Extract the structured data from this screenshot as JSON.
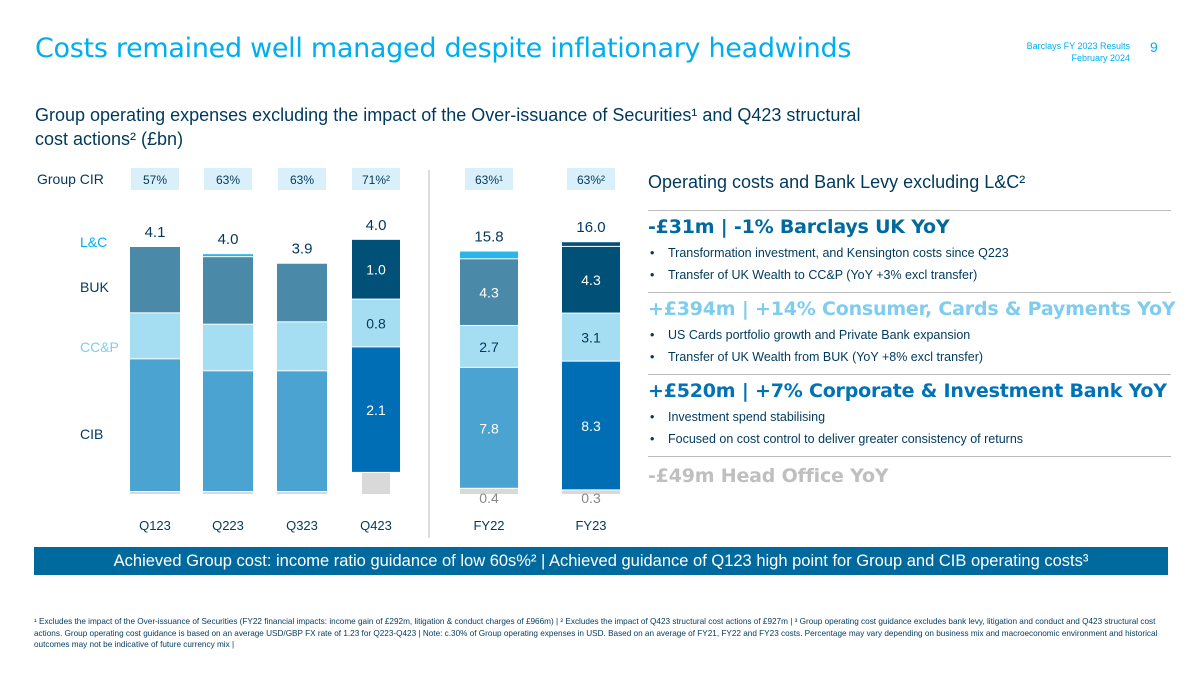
{
  "header": {
    "title": "Costs remained well managed despite inflationary headwinds",
    "report_name": "Barclays FY 2023 Results",
    "report_date": "February 2024",
    "page_number": "9"
  },
  "subtitle": "Group operating expenses excluding the impact of the Over-issuance of Securities¹ and Q423 structural cost actions² (£bn)",
  "colors": {
    "cib": "#4ba3d2",
    "ccp": "#a5ddf3",
    "buk": "#4a8aa8",
    "lc": "#29b5e8",
    "fy23_cib": "#006eb4",
    "fy23_buk": "#005078",
    "head_office": "#d9d9d9",
    "cir_box": "#d9f0fa",
    "accent": "#00aeef",
    "navy": "#00395d"
  },
  "chart_data": {
    "type": "bar",
    "stacked": true,
    "title": "Group operating expenses excluding the impact of the Over-issuance of Securities and Q423 structural cost actions (£bn)",
    "categories": [
      "Q123",
      "Q223",
      "Q323",
      "Q423",
      "FY22",
      "FY23"
    ],
    "series": [
      {
        "name": "CIB",
        "values": [
          null,
          null,
          null,
          2.1,
          7.8,
          8.3
        ],
        "labels": [
          "",
          "",
          "",
          "2.1",
          "7.8",
          "8.3"
        ]
      },
      {
        "name": "CC&P",
        "values": [
          null,
          null,
          null,
          0.8,
          2.7,
          3.1
        ],
        "labels": [
          "",
          "",
          "",
          "0.8",
          "2.7",
          "3.1"
        ]
      },
      {
        "name": "BUK",
        "values": [
          null,
          null,
          null,
          1.0,
          4.3,
          4.3
        ],
        "labels": [
          "",
          "",
          "",
          "1.0",
          "4.3",
          "4.3"
        ]
      },
      {
        "name": "L&C",
        "values": [
          null,
          null,
          null,
          null,
          null,
          null
        ]
      },
      {
        "name": "Head Office",
        "values": [
          null,
          null,
          null,
          null,
          0.4,
          0.3
        ],
        "labels": [
          "",
          "",
          "",
          "",
          "0.4",
          "0.3"
        ]
      }
    ],
    "totals": [
      4.1,
      4.0,
      3.9,
      4.0,
      15.8,
      16.0
    ],
    "total_labels": [
      "4.1",
      "4.0",
      "3.9",
      "4.0",
      "15.8",
      "16.0"
    ],
    "group_cir_label": "Group CIR",
    "group_cir": [
      "57%",
      "63%",
      "63%",
      "71%²",
      "63%¹",
      "63%²"
    ],
    "legend": [
      "L&C",
      "BUK",
      "CC&P",
      "CIB"
    ]
  },
  "right_panel": {
    "title": "Operating costs and Bank Levy excluding L&C²",
    "sections": [
      {
        "headline": "-£31m | -1% Barclays UK YoY",
        "color": "#006a9e",
        "bullets": [
          "Transformation investment, and Kensington costs since Q223",
          "Transfer of UK Wealth to CC&P (YoY +3% excl transfer)"
        ]
      },
      {
        "headline": "+£394m | +14% Consumer, Cards & Payments YoY",
        "color": "#7fcdee",
        "bullets": [
          "US Cards portfolio growth and Private Bank expansion",
          "Transfer of UK Wealth from BUK (YoY +8% excl transfer)"
        ]
      },
      {
        "headline": "+£520m | +7% Corporate & Investment Bank YoY",
        "color": "#0072b5",
        "bullets": [
          "Investment spend stabilising",
          "Focused on cost control to deliver greater consistency of returns"
        ]
      }
    ],
    "head_office": {
      "headline": "-£49m Head Office YoY",
      "color": "#bfbfbf"
    }
  },
  "banner": "Achieved Group cost: income ratio guidance of low 60s%² | Achieved guidance of Q123 high point for Group and CIB operating costs³",
  "footnote": "¹ Excludes the impact of the Over-issuance of Securities (FY22 financial impacts: income gain of £292m, litigation & conduct charges of £966m) | ² Excludes the impact of Q423 structural cost actions of £927m | ³ Group operating cost guidance excludes bank levy, litigation and conduct and Q423 structural cost actions. Group operating cost guidance is based on an average USD/GBP FX rate of 1.23 for Q223-Q423 | Note: c.30% of Group operating expenses in USD. Based on an average of FY21, FY22 and FY23 costs. Percentage may vary depending on business mix and macroeconomic environment and historical outcomes may not be indicative of future currency mix |"
}
